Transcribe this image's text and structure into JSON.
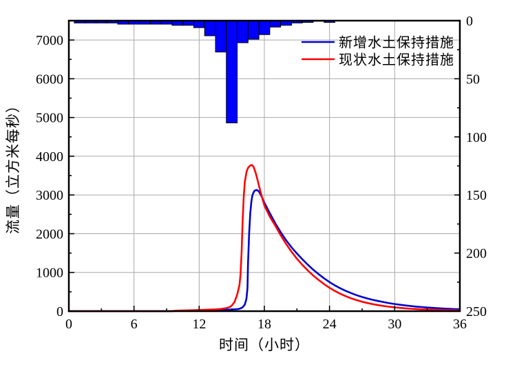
{
  "figure": {
    "background": "#ffffff",
    "frame_color": "#000000",
    "grid_color": "#a8a8a8",
    "x_axis": {
      "title": "时间（小时）",
      "min": 0,
      "max": 36,
      "major_tick_labels": [
        "0",
        "6",
        "12",
        "18",
        "24",
        "30",
        "36"
      ],
      "major_tick_values": [
        0,
        6,
        12,
        18,
        24,
        30,
        36
      ],
      "minor_tick_values": [
        3,
        9,
        15,
        21,
        27,
        33
      ]
    },
    "y_left": {
      "title": "流量（立方米每秒）",
      "min": 0,
      "max": 7500,
      "major_tick_labels": [
        "0",
        "1000",
        "2000",
        "3000",
        "4000",
        "5000",
        "6000",
        "7000"
      ],
      "major_tick_values": [
        0,
        1000,
        2000,
        3000,
        4000,
        5000,
        6000,
        7000
      ],
      "minor_step": 500
    },
    "y_right": {
      "min": 0,
      "max": 250,
      "inverted": true,
      "major_tick_labels": [
        "0",
        "50",
        "100",
        "150",
        "200",
        "250"
      ],
      "major_tick_values": [
        0,
        50,
        100,
        150,
        200,
        250
      ],
      "minor_tick_values": [
        25,
        75,
        125,
        175,
        225
      ]
    },
    "legend": [
      {
        "label": "新增水土保持措施",
        "color": "#0000cc"
      },
      {
        "label": "现状水土保持措施",
        "color": "#ff0000"
      }
    ]
  },
  "chart_data": [
    {
      "type": "bar",
      "name": "rainfall-hyetograph",
      "axis": "right",
      "origin": "top",
      "bar_width_hours": 1,
      "fill": "#0000ff",
      "stroke": "#000000",
      "x": [
        1,
        2,
        3,
        4,
        5,
        6,
        7,
        8,
        9,
        10,
        11,
        12,
        13,
        14,
        15,
        16,
        17,
        18,
        19,
        20,
        21,
        22,
        23,
        24
      ],
      "values": [
        2,
        2,
        2,
        2,
        3,
        3,
        3,
        3,
        3,
        4,
        4,
        6,
        13,
        27,
        88,
        19,
        16,
        12,
        5.5,
        4,
        2,
        1.5,
        0.5,
        1.5
      ]
    },
    {
      "type": "line",
      "name": "flow-hydrographs",
      "axis": "left",
      "series": [
        {
          "name": "新增水土保持措施",
          "color": "#0000cc",
          "points": [
            [
              0,
              0
            ],
            [
              3,
              0
            ],
            [
              6,
              0
            ],
            [
              8,
              0
            ],
            [
              9,
              0
            ],
            [
              9.5,
              2
            ],
            [
              10,
              8
            ],
            [
              11,
              14
            ],
            [
              12,
              20
            ],
            [
              13,
              27
            ],
            [
              14,
              34
            ],
            [
              14.5,
              38
            ],
            [
              15,
              44
            ],
            [
              15.5,
              52
            ],
            [
              15.75,
              65
            ],
            [
              16,
              100
            ],
            [
              16.2,
              170
            ],
            [
              16.35,
              320
            ],
            [
              16.45,
              600
            ],
            [
              16.5,
              1250
            ],
            [
              16.6,
              2000
            ],
            [
              16.7,
              2520
            ],
            [
              16.8,
              2820
            ],
            [
              16.9,
              2990
            ],
            [
              17,
              3060
            ],
            [
              17.1,
              3110
            ],
            [
              17.3,
              3130
            ],
            [
              17.5,
              3090
            ],
            [
              17.75,
              2960
            ],
            [
              18,
              2800
            ],
            [
              18.5,
              2530
            ],
            [
              19,
              2270
            ],
            [
              19.5,
              2040
            ],
            [
              20,
              1830
            ],
            [
              20.5,
              1650
            ],
            [
              21,
              1490
            ],
            [
              21.5,
              1340
            ],
            [
              22,
              1200
            ],
            [
              22.5,
              1070
            ],
            [
              23,
              955
            ],
            [
              23.5,
              848
            ],
            [
              24,
              750
            ],
            [
              24.5,
              665
            ],
            [
              25,
              590
            ],
            [
              25.5,
              523
            ],
            [
              26,
              465
            ],
            [
              26.5,
              413
            ],
            [
              27,
              367
            ],
            [
              27.5,
              327
            ],
            [
              28,
              292
            ],
            [
              28.5,
              261
            ],
            [
              29,
              233
            ],
            [
              29.5,
              207
            ],
            [
              30,
              185
            ],
            [
              30.5,
              165
            ],
            [
              31,
              148
            ],
            [
              31.5,
              132
            ],
            [
              32,
              118
            ],
            [
              32.5,
              106
            ],
            [
              33,
              95
            ],
            [
              33.5,
              85
            ],
            [
              34,
              76
            ],
            [
              34.5,
              68
            ],
            [
              35,
              61
            ],
            [
              35.5,
              55
            ],
            [
              36,
              50
            ]
          ]
        },
        {
          "name": "现状水土保持措施",
          "color": "#ff0000",
          "points": [
            [
              0,
              0
            ],
            [
              3,
              0
            ],
            [
              6,
              0
            ],
            [
              8,
              0
            ],
            [
              9,
              0
            ],
            [
              9.5,
              3
            ],
            [
              10,
              14
            ],
            [
              11,
              21
            ],
            [
              12,
              30
            ],
            [
              13,
              40
            ],
            [
              13.5,
              46
            ],
            [
              14,
              56
            ],
            [
              14.5,
              80
            ],
            [
              14.8,
              105
            ],
            [
              15,
              145
            ],
            [
              15.25,
              235
            ],
            [
              15.5,
              430
            ],
            [
              15.7,
              660
            ],
            [
              15.8,
              920
            ],
            [
              15.9,
              1500
            ],
            [
              16,
              2300
            ],
            [
              16.1,
              2950
            ],
            [
              16.2,
              3330
            ],
            [
              16.35,
              3590
            ],
            [
              16.5,
              3700
            ],
            [
              16.7,
              3760
            ],
            [
              16.85,
              3775
            ],
            [
              17,
              3730
            ],
            [
              17.2,
              3570
            ],
            [
              17.4,
              3360
            ],
            [
              17.6,
              3130
            ],
            [
              17.8,
              2930
            ],
            [
              18,
              2730
            ],
            [
              18.5,
              2440
            ],
            [
              19,
              2210
            ],
            [
              19.5,
              1960
            ],
            [
              20,
              1735
            ],
            [
              20.5,
              1535
            ],
            [
              21,
              1355
            ],
            [
              21.5,
              1195
            ],
            [
              22,
              1050
            ],
            [
              22.5,
              920
            ],
            [
              23,
              805
            ],
            [
              23.5,
              698
            ],
            [
              24,
              603
            ],
            [
              24.5,
              520
            ],
            [
              25,
              448
            ],
            [
              25.5,
              385
            ],
            [
              26,
              331
            ],
            [
              26.5,
              284
            ],
            [
              27,
              244
            ],
            [
              27.5,
              210
            ],
            [
              28,
              180
            ],
            [
              28.5,
              155
            ],
            [
              29,
              133
            ],
            [
              29.5,
              114
            ],
            [
              30,
              98
            ],
            [
              30.5,
              85
            ],
            [
              31,
              73
            ],
            [
              31.5,
              63
            ],
            [
              32,
              55
            ],
            [
              32.5,
              48
            ],
            [
              33,
              42
            ],
            [
              33.5,
              37
            ],
            [
              34,
              32
            ],
            [
              34.5,
              28
            ],
            [
              35,
              25
            ],
            [
              35.5,
              22
            ],
            [
              36,
              20
            ]
          ]
        }
      ]
    }
  ]
}
